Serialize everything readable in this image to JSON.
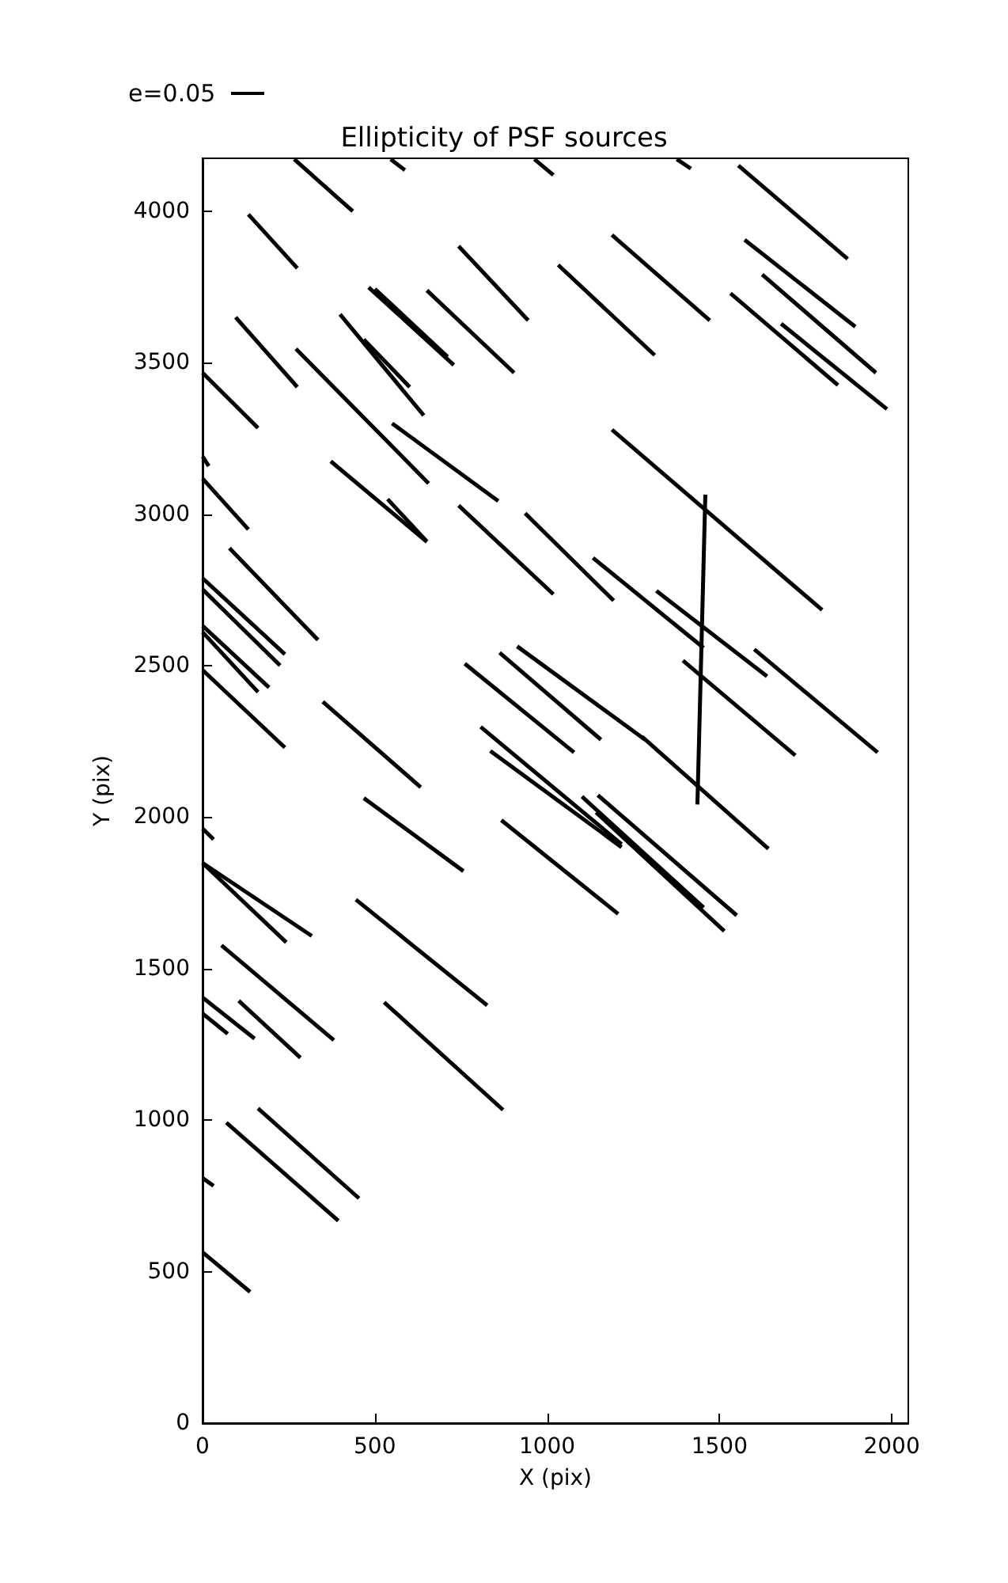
{
  "chart_data": {
    "type": "line",
    "title": "Ellipticity of PSF sources",
    "xlabel": "X (pix)",
    "ylabel": "Y (pix)",
    "annotations": [
      "e=0.05"
    ],
    "xlim": [
      0,
      2048
    ],
    "ylim": [
      0,
      4175
    ],
    "xticks": [
      0,
      500,
      1000,
      1500,
      2000
    ],
    "yticks": [
      0,
      500,
      1000,
      1500,
      2000,
      2500,
      3000,
      3500,
      4000
    ],
    "grid": false,
    "marker": "none",
    "line_style": "solid",
    "series": [
      {
        "color": "#000000",
        "x": [
          266,
          436
        ],
        "values": [
          4172,
          4000
        ]
      },
      {
        "color": "#000000",
        "x": [
          546,
          587
        ],
        "values": [
          4172,
          4136
        ]
      },
      {
        "color": "#000000",
        "x": [
          963,
          1018
        ],
        "values": [
          4172,
          4120
        ]
      },
      {
        "color": "#000000",
        "x": [
          1376,
          1417
        ],
        "values": [
          4172,
          4141
        ]
      },
      {
        "color": "#000000",
        "x": [
          1555,
          1872
        ],
        "values": [
          4151,
          3843
        ]
      },
      {
        "color": "#000000",
        "x": [
          133,
          275
        ],
        "values": [
          3990,
          3812
        ]
      },
      {
        "color": "#000000",
        "x": [
          96,
          275
        ],
        "values": [
          3650,
          3420
        ]
      },
      {
        "color": "#000000",
        "x": [
          0,
          161
        ],
        "values": [
          3467,
          3285
        ]
      },
      {
        "color": "#000000",
        "x": [
          0,
          18
        ],
        "values": [
          3191,
          3159
        ]
      },
      {
        "color": "#000000",
        "x": [
          0,
          133
        ],
        "values": [
          3118,
          2950
        ]
      },
      {
        "color": "#000000",
        "x": [
          271,
          656
        ],
        "values": [
          3546,
          3102
        ]
      },
      {
        "color": "#000000",
        "x": [
          399,
          642
        ],
        "values": [
          3660,
          3326
        ]
      },
      {
        "color": "#000000",
        "x": [
          468,
          601
        ],
        "values": [
          3577,
          3420
        ]
      },
      {
        "color": "#000000",
        "x": [
          482,
          729
        ],
        "values": [
          3749,
          3493
        ]
      },
      {
        "color": "#000000",
        "x": [
          500,
          711
        ],
        "values": [
          3744,
          3520
        ]
      },
      {
        "color": "#000000",
        "x": [
          651,
          904
        ],
        "values": [
          3739,
          3467
        ]
      },
      {
        "color": "#000000",
        "x": [
          743,
          945
        ],
        "values": [
          3885,
          3640
        ]
      },
      {
        "color": "#000000",
        "x": [
          550,
          858
        ],
        "values": [
          3300,
          3044
        ]
      },
      {
        "color": "#000000",
        "x": [
          372,
          651
        ],
        "values": [
          3175,
          2909
        ]
      },
      {
        "color": "#000000",
        "x": [
          537,
          651
        ],
        "values": [
          3050,
          2910
        ]
      },
      {
        "color": "#000000",
        "x": [
          743,
          1018
        ],
        "values": [
          3029,
          2736
        ]
      },
      {
        "color": "#000000",
        "x": [
          936,
          1193
        ],
        "values": [
          3003,
          2715
        ]
      },
      {
        "color": "#000000",
        "x": [
          78,
          335
        ],
        "values": [
          2888,
          2585
        ]
      },
      {
        "color": "#000000",
        "x": [
          1032,
          1312
        ],
        "values": [
          3823,
          3525
        ]
      },
      {
        "color": "#000000",
        "x": [
          1188,
          1472
        ],
        "values": [
          3922,
          3640
        ]
      },
      {
        "color": "#000000",
        "x": [
          1573,
          1894
        ],
        "values": [
          3906,
          3619
        ]
      },
      {
        "color": "#000000",
        "x": [
          1624,
          1954
        ],
        "values": [
          3791,
          3467
        ]
      },
      {
        "color": "#000000",
        "x": [
          1532,
          1844
        ],
        "values": [
          3729,
          3426
        ]
      },
      {
        "color": "#000000",
        "x": [
          1679,
          1986
        ],
        "values": [
          3629,
          3347
        ]
      },
      {
        "color": "#000000",
        "x": [
          1188,
          1798
        ],
        "values": [
          3279,
          2684
        ]
      },
      {
        "color": "#000000",
        "x": [
          1459,
          1436
        ],
        "values": [
          3065,
          2042
        ]
      },
      {
        "color": "#000000",
        "x": [
          0,
          239
        ],
        "values": [
          2789,
          2538
        ]
      },
      {
        "color": "#000000",
        "x": [
          0,
          225
        ],
        "values": [
          2752,
          2501
        ]
      },
      {
        "color": "#000000",
        "x": [
          0,
          193
        ],
        "values": [
          2632,
          2428
        ]
      },
      {
        "color": "#000000",
        "x": [
          0,
          161
        ],
        "values": [
          2611,
          2413
        ]
      },
      {
        "color": "#000000",
        "x": [
          0,
          239
        ],
        "values": [
          2486,
          2230
        ]
      },
      {
        "color": "#000000",
        "x": [
          349,
          633
        ],
        "values": [
          2381,
          2099
        ]
      },
      {
        "color": "#000000",
        "x": [
          468,
          757
        ],
        "values": [
          2063,
          1822
        ]
      },
      {
        "color": "#000000",
        "x": [
          0,
          32
        ],
        "values": [
          1963,
          1927
        ]
      },
      {
        "color": "#000000",
        "x": [
          0,
          243
        ],
        "values": [
          1849,
          1587
        ]
      },
      {
        "color": "#000000",
        "x": [
          0,
          317
        ],
        "values": [
          1849,
          1608
        ]
      },
      {
        "color": "#000000",
        "x": [
          445,
          826
        ],
        "values": [
          1728,
          1379
        ]
      },
      {
        "color": "#000000",
        "x": [
          55,
          381
        ],
        "values": [
          1577,
          1264
        ]
      },
      {
        "color": "#000000",
        "x": [
          761,
          1078
        ],
        "values": [
          2507,
          2214
        ]
      },
      {
        "color": "#000000",
        "x": [
          862,
          1156
        ],
        "values": [
          2543,
          2256
        ]
      },
      {
        "color": "#000000",
        "x": [
          913,
          1284
        ],
        "values": [
          2564,
          2256
        ]
      },
      {
        "color": "#000000",
        "x": [
          1133,
          1454
        ],
        "values": [
          2856,
          2559
        ]
      },
      {
        "color": "#000000",
        "x": [
          1317,
          1638
        ],
        "values": [
          2747,
          2465
        ]
      },
      {
        "color": "#000000",
        "x": [
          1601,
          1959
        ],
        "values": [
          2554,
          2214
        ]
      },
      {
        "color": "#000000",
        "x": [
          1394,
          1720
        ],
        "values": [
          2517,
          2204
        ]
      },
      {
        "color": "#000000",
        "x": [
          1275,
          1642
        ],
        "values": [
          2266,
          1896
        ]
      },
      {
        "color": "#000000",
        "x": [
          807,
          1216
        ],
        "values": [
          2298,
          1911
        ]
      },
      {
        "color": "#000000",
        "x": [
          835,
          1216
        ],
        "values": [
          2219,
          1901
        ]
      },
      {
        "color": "#000000",
        "x": [
          867,
          1206
        ],
        "values": [
          1990,
          1681
        ]
      },
      {
        "color": "#000000",
        "x": [
          1101,
          1454
        ],
        "values": [
          2068,
          1702
        ]
      },
      {
        "color": "#000000",
        "x": [
          1147,
          1550
        ],
        "values": [
          2073,
          1676
        ]
      },
      {
        "color": "#000000",
        "x": [
          1142,
          1514
        ],
        "values": [
          2016,
          1624
        ]
      },
      {
        "color": "#000000",
        "x": [
          0,
          151
        ],
        "values": [
          1405,
          1269
        ]
      },
      {
        "color": "#000000",
        "x": [
          0,
          73
        ],
        "values": [
          1352,
          1285
        ]
      },
      {
        "color": "#000000",
        "x": [
          105,
          284
        ],
        "values": [
          1394,
          1206
        ]
      },
      {
        "color": "#000000",
        "x": [
          527,
          872
        ],
        "values": [
          1389,
          1034
        ]
      },
      {
        "color": "#000000",
        "x": [
          161,
          454
        ],
        "values": [
          1039,
          742
        ]
      },
      {
        "color": "#000000",
        "x": [
          69,
          394
        ],
        "values": [
          992,
          668
        ]
      },
      {
        "color": "#000000",
        "x": [
          0,
          32
        ],
        "values": [
          809,
          783
        ]
      },
      {
        "color": "#000000",
        "x": [
          0,
          138
        ],
        "values": [
          564,
          433
        ]
      }
    ]
  }
}
